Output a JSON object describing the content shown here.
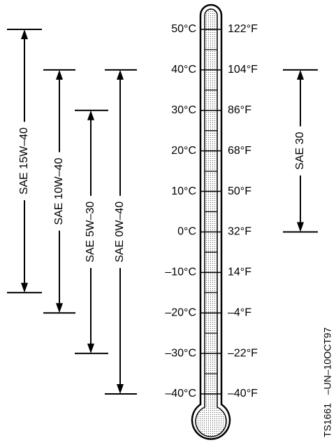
{
  "scale": {
    "celsius": [
      {
        "value": 50,
        "label": "50°C"
      },
      {
        "value": 40,
        "label": "40°C"
      },
      {
        "value": 30,
        "label": "30°C"
      },
      {
        "value": 20,
        "label": "20°C"
      },
      {
        "value": 10,
        "label": "10°C"
      },
      {
        "value": 0,
        "label": "0°C"
      },
      {
        "value": -10,
        "label": "–10°C"
      },
      {
        "value": -20,
        "label": "–20°C"
      },
      {
        "value": -30,
        "label": "–30°C"
      },
      {
        "value": -40,
        "label": "–40°C"
      }
    ],
    "fahrenheit": [
      "122°F",
      "104°F",
      "86°F",
      "68°F",
      "50°F",
      "32°F",
      "14°F",
      "–4°F",
      "–22°F",
      "–40°F"
    ]
  },
  "oils": [
    {
      "label": "SAE 15W–40",
      "min_c": -15,
      "max_c": 50
    },
    {
      "label": "SAE 10W–40",
      "min_c": -20,
      "max_c": 40
    },
    {
      "label": "SAE 5W–30",
      "min_c": -30,
      "max_c": 30
    },
    {
      "label": "SAE 0W–40",
      "min_c": -40,
      "max_c": 40
    },
    {
      "label": "SAE 30",
      "min_c": 0,
      "max_c": 40
    }
  ],
  "footnote": "TS1661   –UN–10OCT97"
}
